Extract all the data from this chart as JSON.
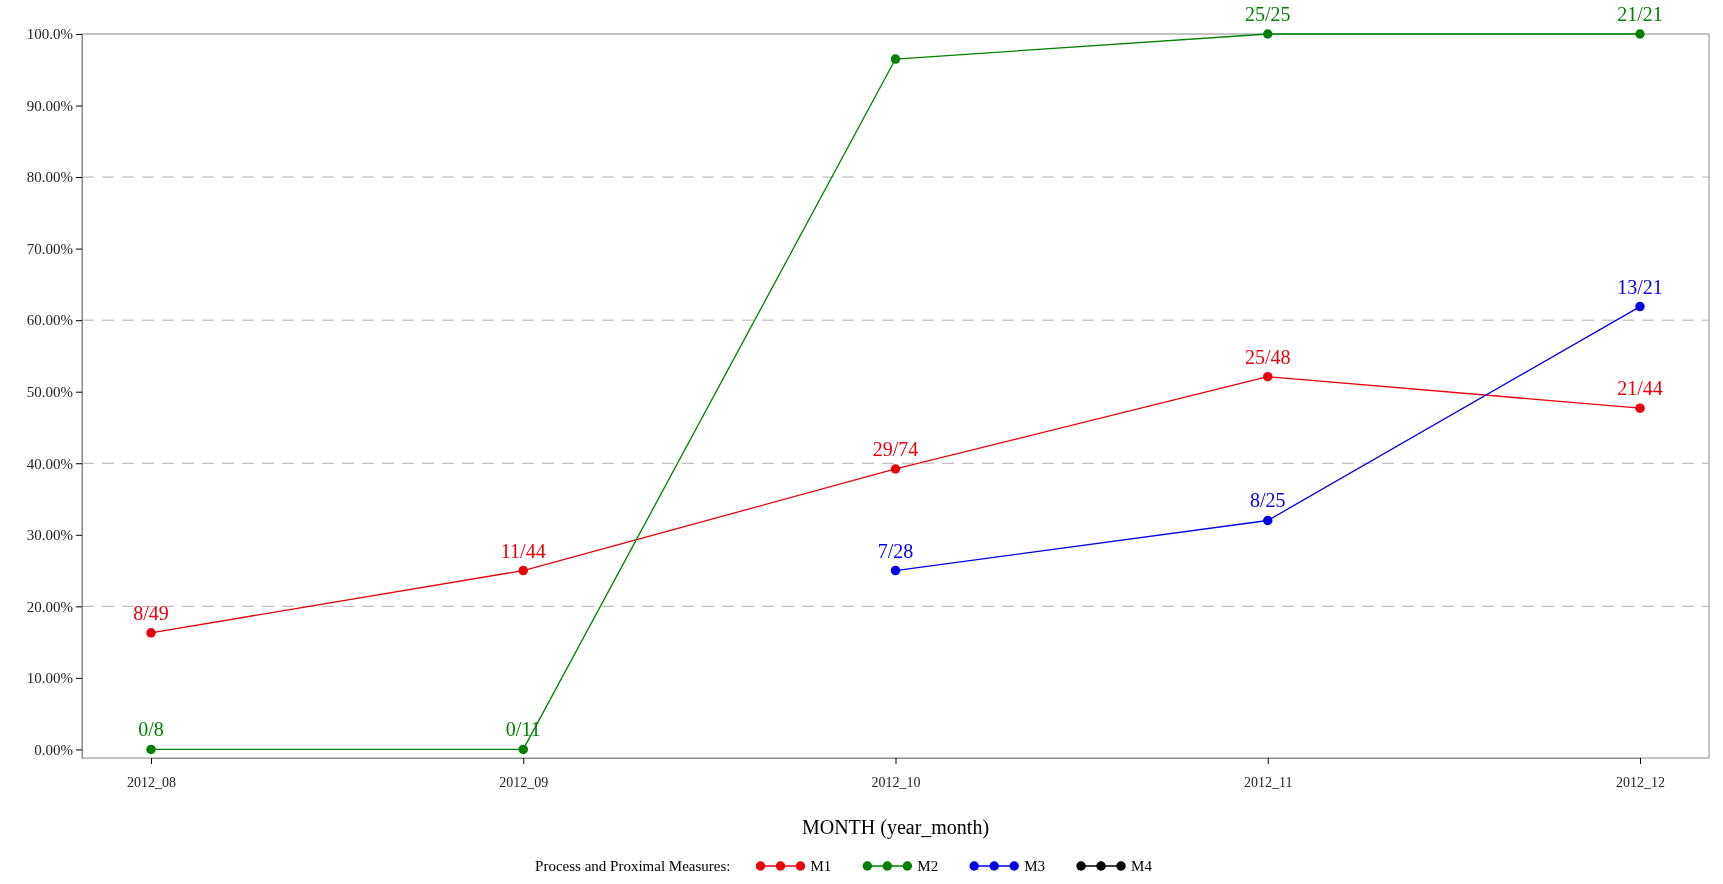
{
  "chart_data": {
    "type": "line",
    "xlabel": "MONTH (year_month)",
    "legend_title": "Process and Proximal Measures:",
    "legend": "bottom",
    "marker": "circle",
    "line_style": "solid",
    "categories": [
      "2012_08",
      "2012_09",
      "2012_10",
      "2012_11",
      "2012_12"
    ],
    "ylim": [
      -1.2,
      100
    ],
    "yticks": [
      {
        "value": 0,
        "label": "0.00%"
      },
      {
        "value": 10,
        "label": "10.00%"
      },
      {
        "value": 20,
        "label": "20.00%"
      },
      {
        "value": 30,
        "label": "30.00%"
      },
      {
        "value": 40,
        "label": "40.00%"
      },
      {
        "value": 50,
        "label": "50.00%"
      },
      {
        "value": 60,
        "label": "60.00%"
      },
      {
        "value": 70,
        "label": "70.00%"
      },
      {
        "value": 80,
        "label": "80.00%"
      },
      {
        "value": 90,
        "label": "90.00%"
      },
      {
        "value": 100,
        "label": "100.0%"
      }
    ],
    "ref_lines": [
      {
        "axis": "y",
        "value": 20,
        "color": "#b0b0b0",
        "line_style": "dashed"
      },
      {
        "axis": "y",
        "value": 40,
        "color": "#b0b0b0",
        "line_style": "dashed"
      },
      {
        "axis": "y",
        "value": 60,
        "color": "#b0b0b0",
        "line_style": "dashed"
      },
      {
        "axis": "y",
        "value": 80,
        "color": "#b0b0b0",
        "line_style": "dashed"
      }
    ],
    "series": [
      {
        "name": "M1",
        "color": "#e8000b",
        "values": [
          16.3,
          25,
          39.2,
          52.1,
          47.7
        ],
        "value_labels": [
          "8/49",
          "11/44",
          "29/74",
          "25/48",
          "21/44"
        ]
      },
      {
        "name": "M2",
        "color": "#007f00",
        "values": [
          0,
          0,
          96.5,
          100,
          100
        ],
        "value_labels": [
          "0/8",
          "0/11",
          null,
          "25/25",
          "21/21"
        ]
      },
      {
        "name": "M3",
        "color": "#0000e8",
        "values": [
          null,
          null,
          25,
          32,
          61.9
        ],
        "value_labels": [
          null,
          null,
          "7/28",
          "8/25",
          "13/21"
        ]
      },
      {
        "name": "M4",
        "color": "#000000",
        "values": [
          null,
          null,
          null,
          null,
          null
        ]
      }
    ]
  }
}
